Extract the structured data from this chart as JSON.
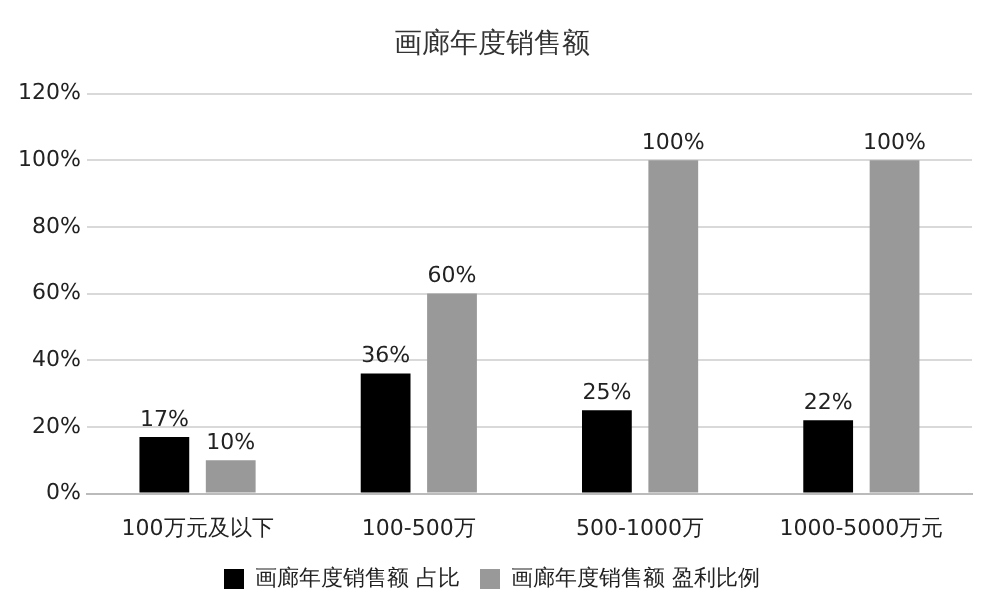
{
  "chart_data": {
    "type": "bar",
    "title": "画廊年度销售额",
    "categories": [
      "100万元及以下",
      "100-500万",
      "500-1000万",
      "1000-5000万元"
    ],
    "series": [
      {
        "name": "画廊年度销售额 占比",
        "color": "#000000",
        "values": [
          17,
          36,
          25,
          22
        ],
        "value_labels": [
          "17%",
          "36%",
          "25%",
          "22%"
        ]
      },
      {
        "name": "画廊年度销售额 盈利比例",
        "color": "#999999",
        "values": [
          10,
          60,
          100,
          100
        ],
        "value_labels": [
          "10%",
          "60%",
          "100%",
          "100%"
        ]
      }
    ],
    "ylim": [
      0,
      120
    ],
    "yticks": [
      {
        "value": 0,
        "label": "0%"
      },
      {
        "value": 20,
        "label": "20%"
      },
      {
        "value": 40,
        "label": "40%"
      },
      {
        "value": 60,
        "label": "60%"
      },
      {
        "value": 80,
        "label": "80%"
      },
      {
        "value": 100,
        "label": "100%"
      },
      {
        "value": 120,
        "label": "120%"
      }
    ],
    "grid": "y",
    "legend": "bottom"
  }
}
